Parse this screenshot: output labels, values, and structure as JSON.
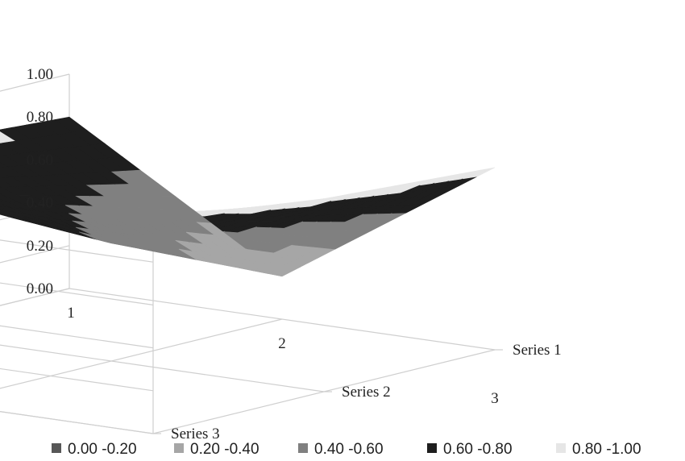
{
  "chart_data": {
    "type": "surface",
    "title": "",
    "categories": [
      "1",
      "2",
      "3"
    ],
    "series_axis": [
      "Series 1",
      "Series 2",
      "Series 3"
    ],
    "zlim": [
      0,
      1
    ],
    "z_ticks": [
      "0.00",
      "0.20",
      "0.40",
      "0.60",
      "0.80",
      "1.00"
    ],
    "series": [
      {
        "name": "Series 1",
        "values": [
          0.8,
          0.2,
          0.85
        ]
      },
      {
        "name": "Series 2",
        "values": [
          0.85,
          0.55,
          0.9
        ]
      },
      {
        "name": "Series 3",
        "values": [
          0.95,
          0.95,
          1.0
        ]
      }
    ],
    "legend": {
      "position": "bottom",
      "entries": [
        {
          "label": "0.00 -0.20",
          "color": "#575757"
        },
        {
          "label": "0.20 -0.40",
          "color": "#a6a6a6"
        },
        {
          "label": "0.40 -0.60",
          "color": "#808080"
        },
        {
          "label": "0.60 -0.80",
          "color": "#1e1e1e"
        },
        {
          "label": "0.80 -1.00",
          "color": "#e6e6e6"
        }
      ]
    },
    "grid": true
  }
}
